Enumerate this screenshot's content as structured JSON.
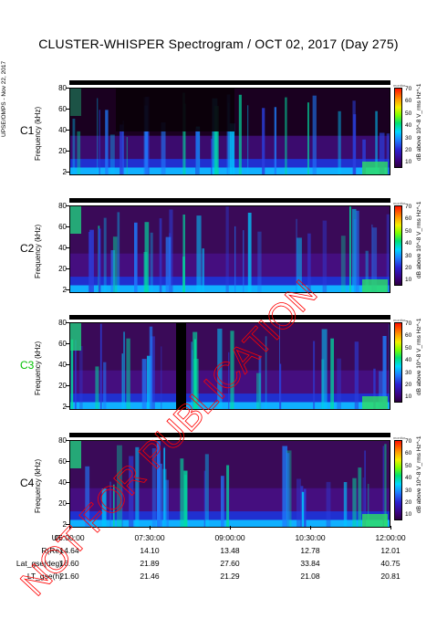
{
  "title": "CLUSTER-WHISPER Spectrogram / OCT 02, 2017 (Day 275)",
  "side_credit": "UPSE/OMPS - Nov 22, 2017",
  "watermark_text": "NOT FOR PUBLICATION",
  "colors": {
    "watermark": "#ff0000",
    "c3_label": "#00c000",
    "background_dark": "#160018"
  },
  "panels": [
    {
      "sc": "C1",
      "sc_color": "#000000",
      "ylabel": "Frequency (kHz)",
      "clabel": "dB above 10^-8 V_rms Hz^-1"
    },
    {
      "sc": "C2",
      "sc_color": "#000000",
      "ylabel": "Frequency (kHz)",
      "clabel": "dB above 10^-8 V_rms Hz^-1"
    },
    {
      "sc": "C3",
      "sc_color": "#00c000",
      "ylabel": "Frequency (kHz)",
      "clabel": "dB above 10^-8 V_rms Hz^-1"
    },
    {
      "sc": "C4",
      "sc_color": "#000000",
      "ylabel": "Frequency (kHz)",
      "clabel": "dB above 10^-8 V_rms Hz^-1"
    }
  ],
  "colorbar_marker": "monitor",
  "y_ticks": [
    "80",
    "60",
    "40",
    "20",
    "2"
  ],
  "colorbar_ticks": [
    "70",
    "60",
    "50",
    "40",
    "30",
    "20",
    "10"
  ],
  "x_axis": {
    "labels": [
      "UT",
      "R(Re)",
      "Lat_gse(deg)",
      "LT_gse(h)"
    ],
    "columns": [
      {
        "UT": "06:00:00",
        "R": "14.64",
        "Lat": "16.60",
        "LT": "21.60"
      },
      {
        "UT": "07:30:00",
        "R": "14.10",
        "Lat": "21.89",
        "LT": "21.46"
      },
      {
        "UT": "09:00:00",
        "R": "13.48",
        "Lat": "27.60",
        "LT": "21.29"
      },
      {
        "UT": "10:30:00",
        "R": "12.78",
        "Lat": "33.84",
        "LT": "21.08"
      },
      {
        "UT": "12:00:00",
        "R": "12.01",
        "Lat": "40.75",
        "LT": "20.81"
      }
    ]
  },
  "chart_data": {
    "type": "heatmap",
    "title": "CLUSTER-WHISPER Spectrogram / OCT 02, 2017 (Day 275)",
    "xlabel": "UT",
    "ylabel": "Frequency (kHz)",
    "xlim": [
      "06:00:00",
      "12:00:00"
    ],
    "ylim": [
      2,
      80
    ],
    "color_label": "dB above 10^-8 V_rms Hz^-1",
    "color_range": [
      10,
      70
    ],
    "series": [
      {
        "name": "C1"
      },
      {
        "name": "C2"
      },
      {
        "name": "C3"
      },
      {
        "name": "C4"
      }
    ]
  }
}
